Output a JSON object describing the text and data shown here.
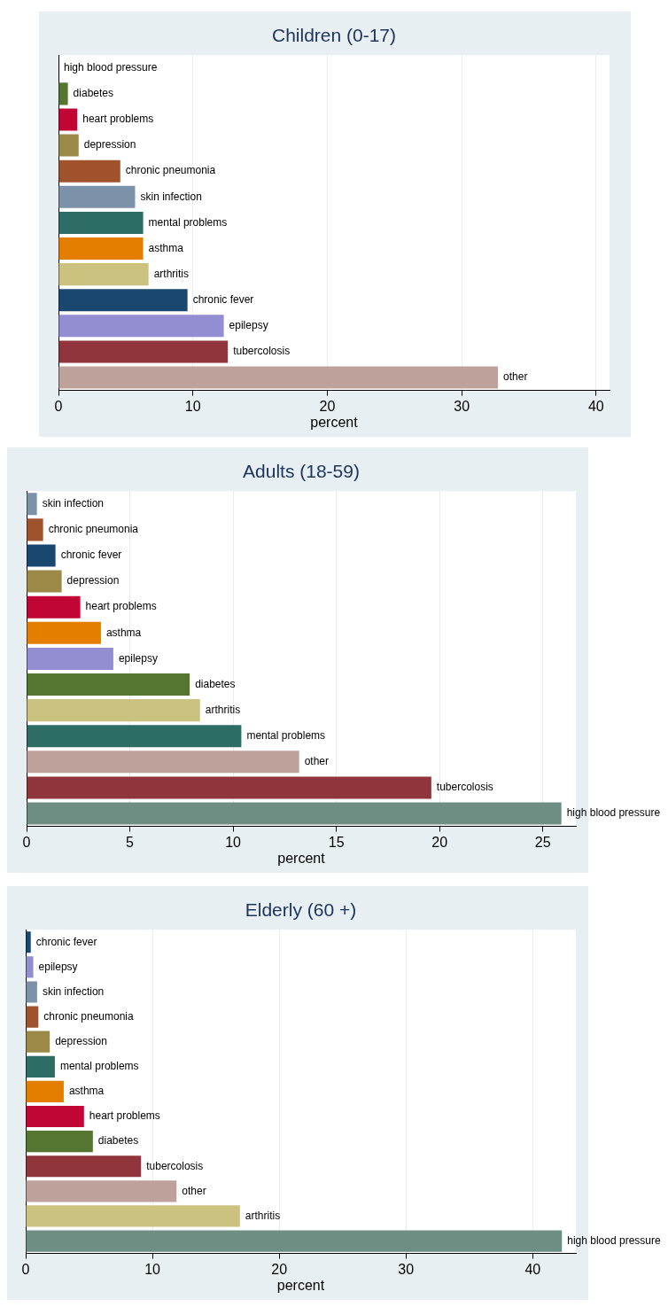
{
  "chart_data": [
    {
      "type": "bar",
      "orientation": "horizontal",
      "title": "Children (0-17)",
      "xlabel": "percent",
      "categories": [
        "high blood pressure",
        "diabetes",
        "heart problems",
        "depression",
        "chronic pneumonia",
        "skin infection",
        "mental problems",
        "asthma",
        "arthritis",
        "chronic fever",
        "epilepsy",
        "tubercolosis",
        "other"
      ],
      "values": [
        0,
        0.7,
        1.4,
        1.5,
        4.6,
        5.7,
        6.3,
        6.3,
        6.7,
        9.6,
        12.3,
        12.6,
        32.7
      ],
      "colors": [
        "#6e8e84",
        "#557630",
        "#c10534",
        "#9c8847",
        "#a0522d",
        "#7b92a8",
        "#2d6d66",
        "#e37e00",
        "#cac27e",
        "#1a476f",
        "#938dd2",
        "#90353b",
        "#bfa19c"
      ],
      "xlim": [
        0,
        41
      ],
      "xticks": [
        0,
        10,
        20,
        30,
        40
      ],
      "grid": "x",
      "tick_labels": "x"
    },
    {
      "type": "bar",
      "orientation": "horizontal",
      "title": "Adults (18-59)",
      "xlabel": "percent",
      "categories": [
        "skin infection",
        "chronic pneumonia",
        "chronic fever",
        "depression",
        "heart problems",
        "asthma",
        "epilepsy",
        "diabetes",
        "arthritis",
        "mental problems",
        "other",
        "tubercolosis",
        "high blood pressure"
      ],
      "values": [
        0.5,
        0.8,
        1.4,
        1.7,
        2.6,
        3.6,
        4.2,
        7.9,
        8.4,
        10.4,
        13.2,
        19.6,
        25.9
      ],
      "colors": [
        "#7b92a8",
        "#a0522d",
        "#1a476f",
        "#9c8847",
        "#c10534",
        "#e37e00",
        "#938dd2",
        "#557630",
        "#cac27e",
        "#2d6d66",
        "#bfa19c",
        "#90353b",
        "#6e8e84"
      ],
      "xlim": [
        0,
        26.6
      ],
      "xticks": [
        0,
        5,
        10,
        15,
        20,
        25
      ],
      "grid": "x",
      "tick_labels": "x"
    },
    {
      "type": "bar",
      "orientation": "horizontal",
      "title": "Elderly (60 +)",
      "xlabel": "percent",
      "categories": [
        "chronic fever",
        "epilepsy",
        "skin infection",
        "chronic pneumonia",
        "depression",
        "mental problems",
        "asthma",
        "heart problems",
        "diabetes",
        "tubercolosis",
        "other",
        "arthritis",
        "high blood pressure"
      ],
      "values": [
        0.4,
        0.6,
        0.9,
        1.0,
        1.9,
        2.3,
        3.0,
        4.6,
        5.3,
        9.1,
        11.9,
        16.9,
        42.3
      ],
      "colors": [
        "#1a476f",
        "#938dd2",
        "#7b92a8",
        "#a0522d",
        "#9c8847",
        "#2d6d66",
        "#e37e00",
        "#c10534",
        "#557630",
        "#90353b",
        "#bfa19c",
        "#cac27e",
        "#6e8e84"
      ],
      "xlim": [
        0,
        43.4
      ],
      "xticks": [
        0,
        10,
        20,
        30,
        40
      ],
      "grid": "x",
      "tick_labels": "x"
    }
  ]
}
